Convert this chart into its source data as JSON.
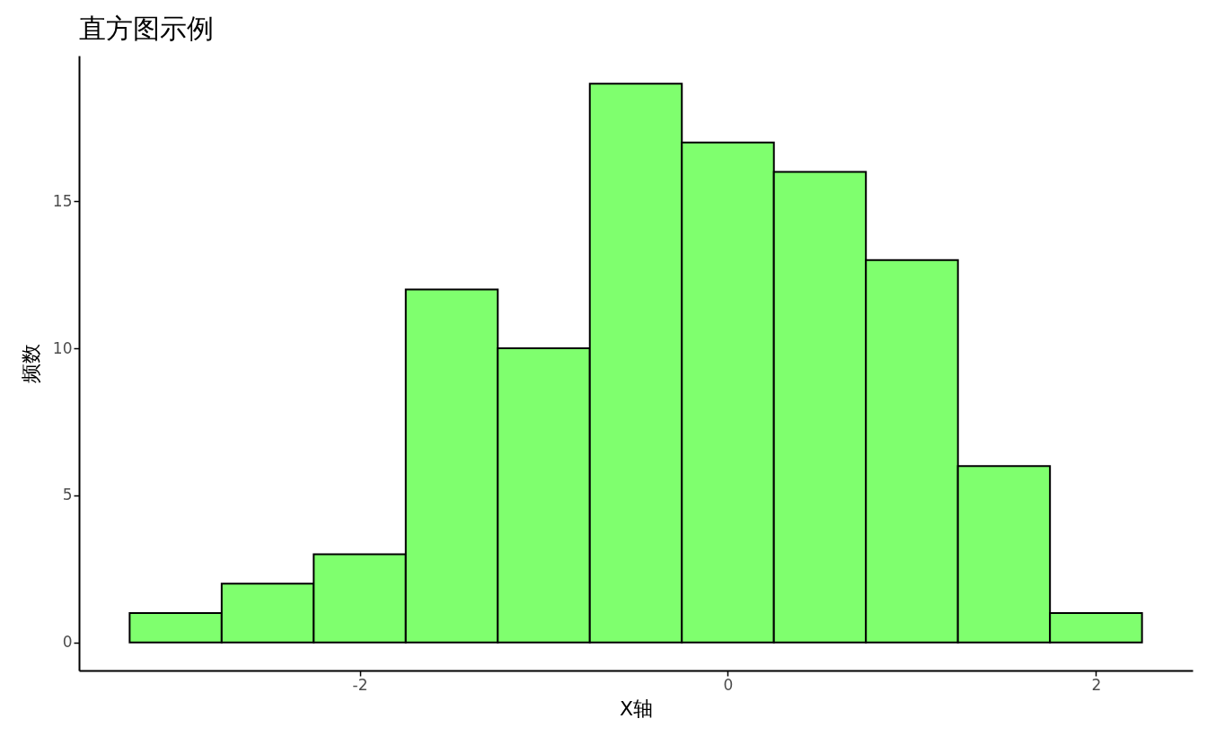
{
  "chart_data": {
    "type": "histogram",
    "title": "直方图示例",
    "xlabel": "X轴",
    "ylabel": "频数",
    "bins": [
      -3.25,
      -2.75,
      -2.25,
      -1.75,
      -1.25,
      -0.75,
      -0.25,
      0.25,
      0.75,
      1.25,
      1.75,
      2.25
    ],
    "values": [
      1,
      2,
      3,
      12,
      10,
      19,
      17,
      16,
      13,
      6,
      1
    ],
    "color": "#7fff6e",
    "xlim": [
      -3.525,
      2.525
    ],
    "xticks": [
      -2,
      0,
      2
    ],
    "ylim": [
      -0.95,
      19.95
    ],
    "yticks": [
      0,
      5,
      10,
      15
    ],
    "grid": false
  }
}
